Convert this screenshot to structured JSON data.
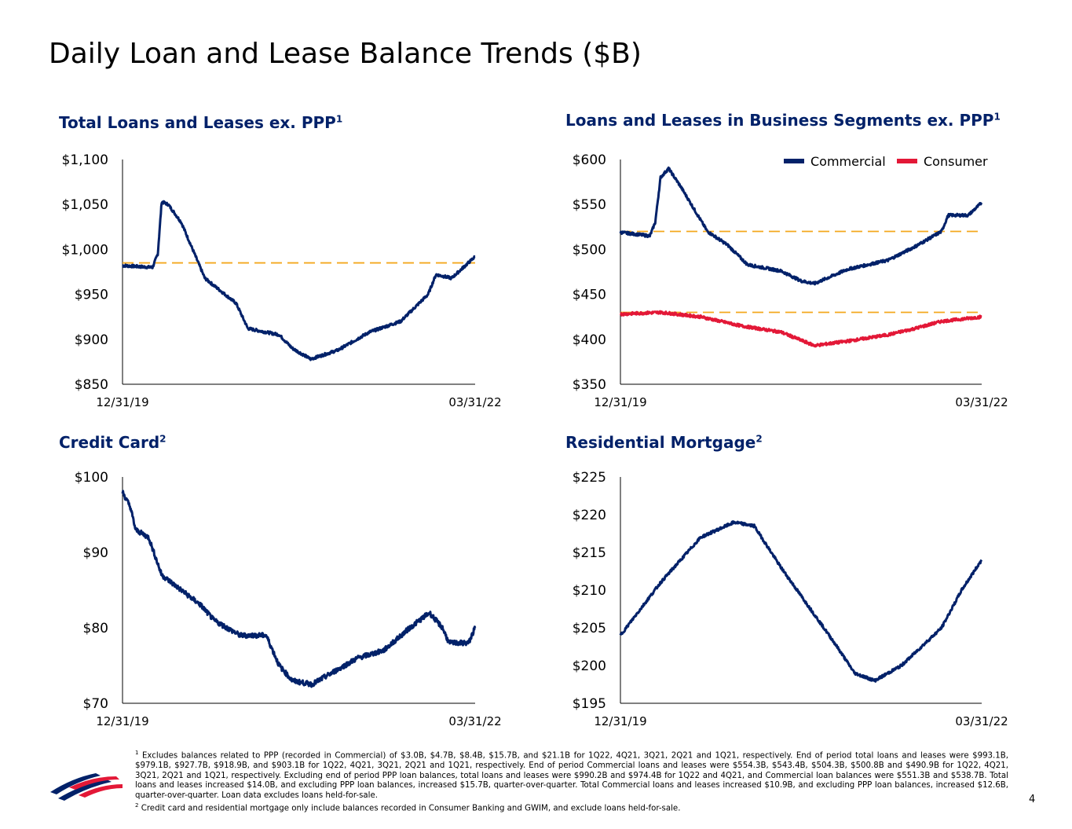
{
  "page_title": "Daily Loan and Lease Balance Trends ($B)",
  "page_number": "4",
  "colors": {
    "navy": "#012169",
    "red": "#E31837",
    "ref": "#F4A81D"
  },
  "chart_data": [
    {
      "type": "line",
      "title": "Total Loans and Leases ex. PPP",
      "title_sup": "1",
      "x_unit": "months since 12/31/19",
      "xlim": [
        0,
        27
      ],
      "x_tick_labels": [
        "12/31/19",
        "03/31/22"
      ],
      "ylim": [
        850,
        1100
      ],
      "y_ticks": [
        850,
        900,
        950,
        1000,
        1050,
        1100
      ],
      "y_tick_labels": [
        "$850",
        "$900",
        "$950",
        "$1,000",
        "$1,050",
        "$1,100"
      ],
      "reference_lines": [
        985
      ],
      "series": [
        {
          "name": "Total",
          "color": "#012169",
          "x": [
            0,
            2.3,
            2.7,
            3,
            3.5,
            4.5,
            6.3,
            8.7,
            9.6,
            12,
            13,
            14.4,
            16.5,
            18.9,
            21.3,
            23.4,
            24,
            25.2,
            27
          ],
          "y": [
            982,
            980,
            995,
            1053,
            1050,
            1030,
            968,
            940,
            912,
            905,
            890,
            878,
            888,
            908,
            920,
            950,
            972,
            968,
            992
          ]
        }
      ]
    },
    {
      "type": "line",
      "title": "Loans and Leases in Business Segments ex. PPP",
      "title_sup": "1",
      "x_unit": "months since 12/31/19",
      "xlim": [
        0,
        27
      ],
      "x_tick_labels": [
        "12/31/19",
        "03/31/22"
      ],
      "ylim": [
        350,
        600
      ],
      "y_ticks": [
        350,
        400,
        450,
        500,
        550,
        600
      ],
      "y_tick_labels": [
        "$350",
        "$400",
        "$450",
        "$500",
        "$550",
        "$600"
      ],
      "reference_lines": [
        520,
        430
      ],
      "legend": "top-right",
      "series": [
        {
          "name": "Commercial",
          "color": "#012169",
          "x": [
            0,
            2.2,
            2.6,
            3,
            3.6,
            4.5,
            6.5,
            8,
            9.5,
            12,
            13.5,
            14.5,
            17,
            20,
            22,
            24,
            24.5,
            26,
            27
          ],
          "y": [
            519,
            515,
            530,
            580,
            590,
            570,
            520,
            505,
            483,
            476,
            465,
            462,
            478,
            488,
            503,
            520,
            538,
            538,
            552
          ]
        },
        {
          "name": "Consumer",
          "color": "#E31837",
          "x": [
            0,
            3,
            6,
            9,
            12,
            14.5,
            17,
            20,
            22,
            24,
            27
          ],
          "y": [
            428,
            430,
            425,
            415,
            408,
            393,
            398,
            405,
            412,
            420,
            425
          ]
        }
      ]
    },
    {
      "type": "line",
      "title": "Credit Card",
      "title_sup": "2",
      "x_unit": "months since 12/31/19",
      "xlim": [
        0,
        27
      ],
      "x_tick_labels": [
        "12/31/19",
        "03/31/22"
      ],
      "ylim": [
        70,
        100
      ],
      "y_ticks": [
        70,
        80,
        90,
        100
      ],
      "y_tick_labels": [
        "$70",
        "$80",
        "$90",
        "$100"
      ],
      "series": [
        {
          "name": "Credit Card",
          "color": "#012169",
          "x": [
            0,
            0.6,
            1,
            2,
            3,
            4.5,
            6,
            7,
            9,
            11,
            12,
            13,
            14.5,
            16,
            18,
            20,
            22,
            23.5,
            24.5,
            25,
            26.5,
            27
          ],
          "y": [
            98,
            96,
            93,
            92,
            87,
            85,
            83,
            81,
            79,
            79,
            75,
            73,
            72.5,
            74,
            76,
            77,
            80,
            82,
            80,
            78,
            78,
            80
          ]
        }
      ]
    },
    {
      "type": "line",
      "title": "Residential Mortgage",
      "title_sup": "2",
      "x_unit": "months since 12/31/19",
      "xlim": [
        0,
        27
      ],
      "x_tick_labels": [
        "12/31/19",
        "03/31/22"
      ],
      "ylim": [
        195,
        225
      ],
      "y_ticks": [
        195,
        200,
        205,
        210,
        215,
        220,
        225
      ],
      "y_tick_labels": [
        "$195",
        "$200",
        "$205",
        "$210",
        "$215",
        "$220",
        "$225"
      ],
      "series": [
        {
          "name": "Residential Mortgage",
          "color": "#012169",
          "x": [
            0,
            3,
            6,
            8.5,
            10,
            12,
            14,
            16,
            17.5,
            19,
            21,
            24,
            25.5,
            27
          ],
          "y": [
            204,
            211,
            217,
            219,
            218.5,
            213,
            208,
            203,
            199,
            198,
            200,
            205,
            210,
            214
          ]
        }
      ]
    }
  ],
  "footnotes": {
    "f1_sup": "1",
    "f1": "Excludes balances related to PPP (recorded in Commercial) of $3.0B, $4.7B, $8.4B, $15.7B, and $21.1B for 1Q22, 4Q21, 3Q21, 2Q21 and 1Q21, respectively. End of period total loans and leases were $993.1B, $979.1B, $927.7B, $918.9B, and $903.1B for 1Q22, 4Q21, 3Q21, 2Q21 and 1Q21, respectively. End of period Commercial loans and leases were $554.3B, $543.4B, $504.3B, $500.8B and $490.9B for 1Q22, 4Q21, 3Q21, 2Q21 and 1Q21, respectively. Excluding end of period PPP loan balances, total loans and leases were $990.2B and $974.4B for 1Q22 and 4Q21, and Commercial loan balances were $551.3B and $538.7B. Total loans and leases increased $14.0B, and excluding PPP loan balances, increased $15.7B, quarter-over-quarter. Total Commercial loans and leases increased $10.9B, and excluding PPP loan balances, increased $12.6B, quarter-over-quarter. Loan data excludes loans held-for-sale.",
    "f2_sup": "2",
    "f2": "Credit card and residential mortgage only include balances recorded in Consumer Banking and GWIM, and exclude loans held-for-sale."
  }
}
